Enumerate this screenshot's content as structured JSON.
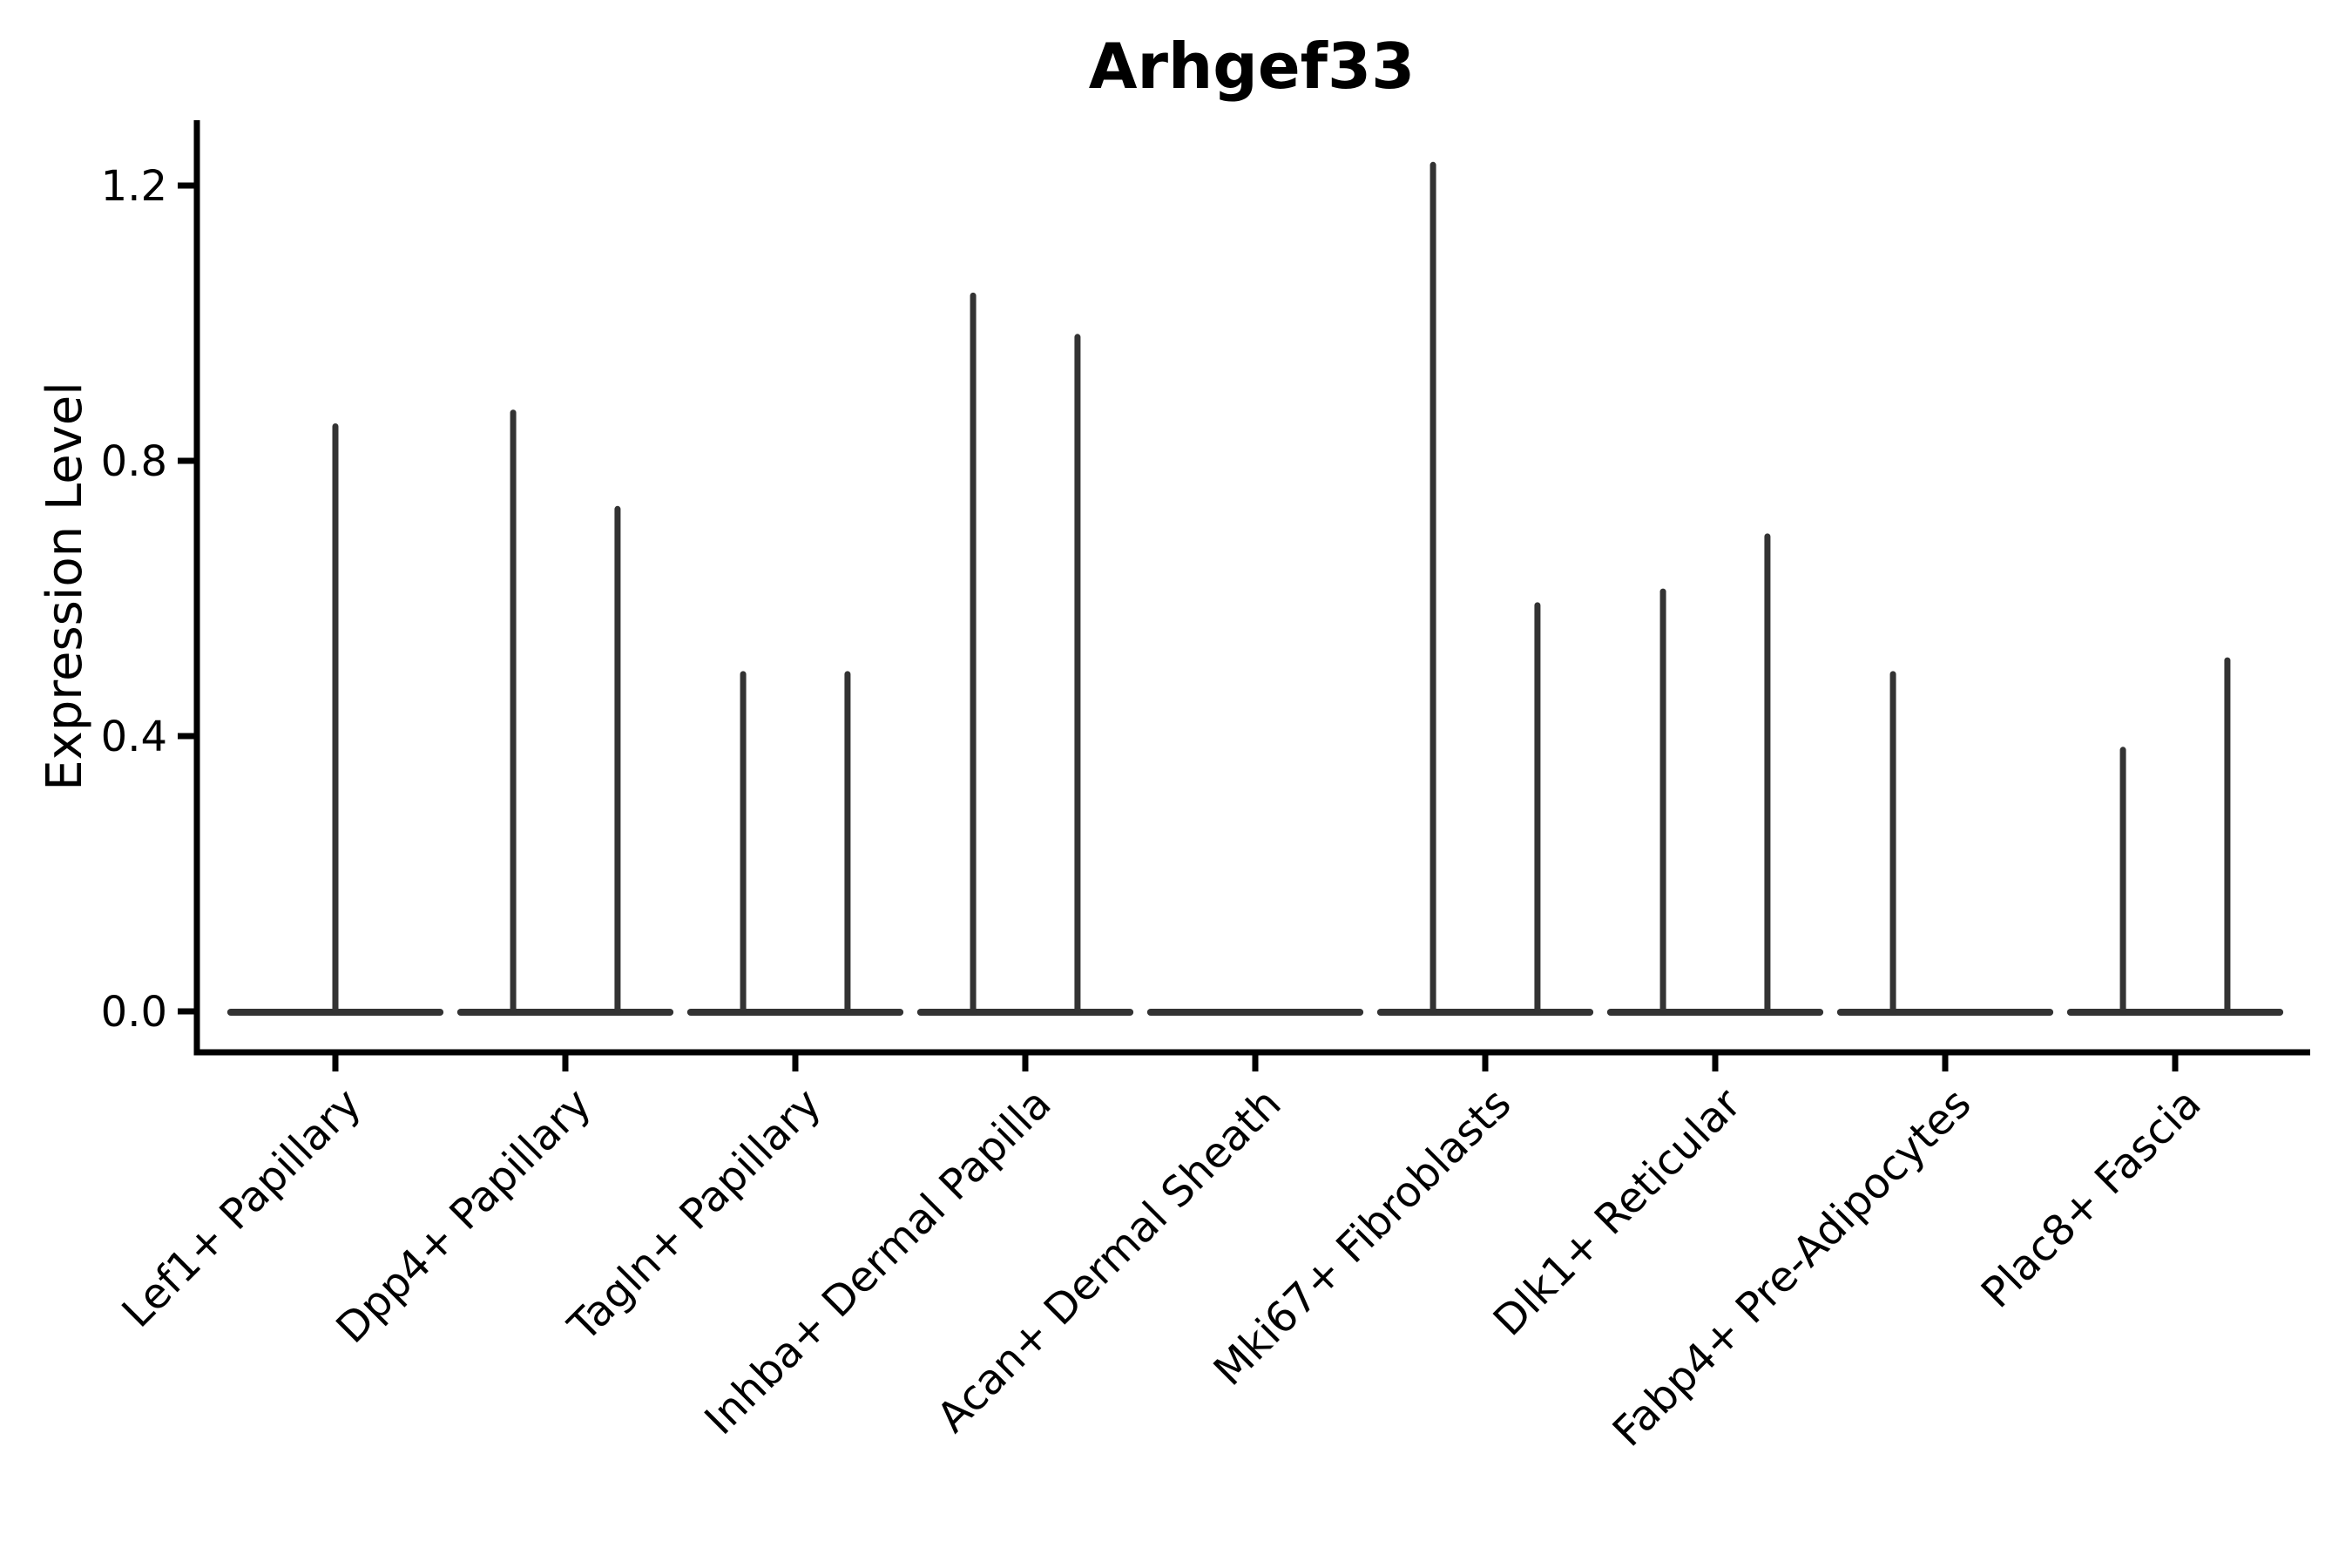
{
  "figure": {
    "title": "Arhgef33",
    "y_axis_label": "Expression Level"
  },
  "colors": {
    "violin": "#333333",
    "axis": "#000000",
    "background": "#ffffff"
  },
  "chart_data": {
    "type": "violin",
    "title": "Arhgef33",
    "xlabel": "",
    "ylabel": "Expression Level",
    "ylim": [
      -0.06,
      1.3
    ],
    "yticks": [
      0,
      0.4,
      0.8,
      1.2
    ],
    "ytick_labels": [
      "0.0",
      "0.4",
      "0.8",
      "1.2"
    ],
    "grid": false,
    "legend": "none",
    "categories": [
      "Lef1+ Papillary",
      "Dpp4+ Papillary",
      "Tagln+ Papillary",
      "Inhba+ Dermal Papilla",
      "Acan+ Dermal Sheath",
      "Mki67+ Fibroblasts",
      "Dlk1+ Reticular",
      "Fabp4+ Pre-Adipocytes",
      "Plac8+ Fascia"
    ],
    "violin_halfwidth": 0.455,
    "violins": [
      {
        "category": "Lef1+ Papillary",
        "base_at": 0.0,
        "spikes": [
          {
            "offset": 0.0,
            "peak": 0.85
          }
        ]
      },
      {
        "category": "Dpp4+ Papillary",
        "base_at": 0.0,
        "spikes": [
          {
            "offset": -0.227,
            "peak": 0.87
          },
          {
            "offset": 0.227,
            "peak": 0.73
          }
        ]
      },
      {
        "category": "Tagln+ Papillary",
        "base_at": 0.0,
        "spikes": [
          {
            "offset": -0.227,
            "peak": 0.49
          },
          {
            "offset": 0.227,
            "peak": 0.49
          }
        ]
      },
      {
        "category": "Inhba+ Dermal Papilla",
        "base_at": 0.0,
        "spikes": [
          {
            "offset": -0.227,
            "peak": 1.04
          },
          {
            "offset": 0.227,
            "peak": 0.98
          }
        ]
      },
      {
        "category": "Acan+ Dermal Sheath",
        "base_at": 0.0,
        "spikes": []
      },
      {
        "category": "Mki67+ Fibroblasts",
        "base_at": 0.0,
        "spikes": [
          {
            "offset": -0.227,
            "peak": 1.23
          },
          {
            "offset": 0.227,
            "peak": 0.59
          }
        ]
      },
      {
        "category": "Dlk1+ Reticular",
        "base_at": 0.0,
        "spikes": [
          {
            "offset": -0.227,
            "peak": 0.61
          },
          {
            "offset": 0.227,
            "peak": 0.69
          }
        ]
      },
      {
        "category": "Fabp4+ Pre-Adipocytes",
        "base_at": 0.0,
        "spikes": [
          {
            "offset": -0.227,
            "peak": 0.49
          }
        ]
      },
      {
        "category": "Plac8+ Fascia",
        "base_at": 0.0,
        "spikes": [
          {
            "offset": -0.227,
            "peak": 0.38
          },
          {
            "offset": 0.227,
            "peak": 0.51
          }
        ]
      }
    ]
  }
}
